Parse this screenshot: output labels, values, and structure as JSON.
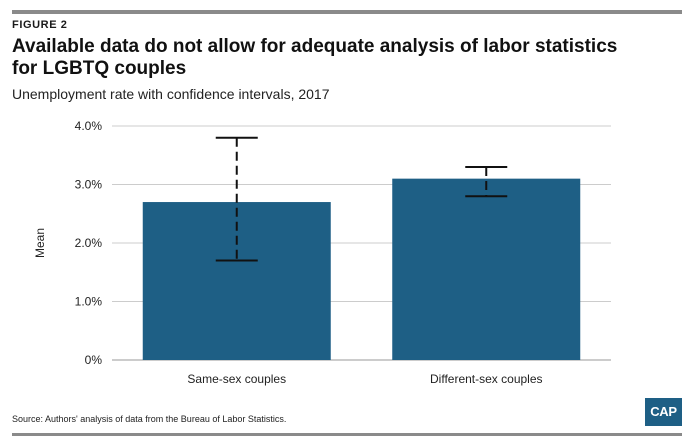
{
  "figure_label": "FIGURE 2",
  "title": "Available data do not allow for adequate analysis of labor statistics for LGBTQ couples",
  "subtitle": "Unemployment rate with confidence intervals, 2017",
  "source": "Source: Authors' analysis of data from the Bureau of Labor Statistics.",
  "logo_text": "CAP",
  "colors": {
    "bar": "#1e5f85",
    "grid": "#cccccc",
    "rule": "#8a8a8a",
    "logo": "#1e5f85"
  },
  "chart_data": {
    "type": "bar",
    "categories": [
      "Same-sex couples",
      "Different-sex couples"
    ],
    "values": [
      2.7,
      3.1
    ],
    "error_bars": [
      {
        "low": 1.7,
        "high": 3.8
      },
      {
        "low": 2.8,
        "high": 3.3
      }
    ],
    "ylabel": "Mean",
    "ylim": [
      0,
      4
    ],
    "yticks": [
      0,
      1,
      2,
      3,
      4
    ],
    "ytick_labels": [
      "0%",
      "1.0%",
      "2.0%",
      "3.0%",
      "4.0%"
    ],
    "grid": true
  }
}
